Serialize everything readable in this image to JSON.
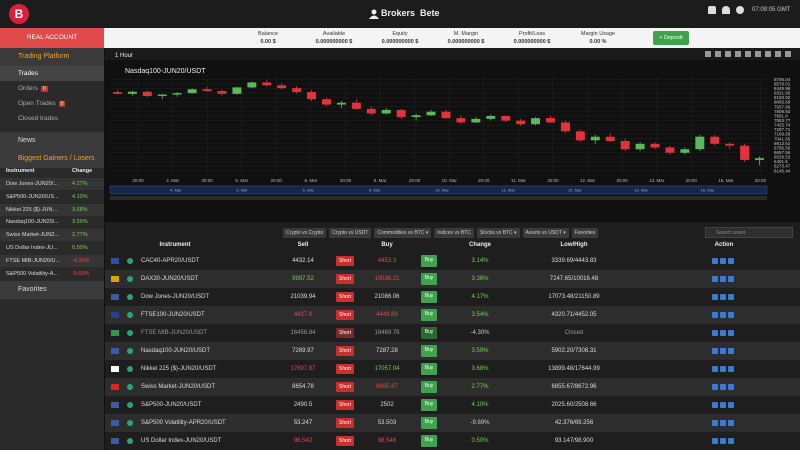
{
  "header": {
    "title": "Brokers  Bete",
    "time": "07:09:05 GMT"
  },
  "account": {
    "button": "REAL ACCOUNT",
    "stats": [
      {
        "label": "Balance",
        "value": "0.00 $"
      },
      {
        "label": "Available",
        "value": "0.000000000 $"
      },
      {
        "label": "Equity",
        "value": "0.000000000 $"
      },
      {
        "label": "M. Margin",
        "value": "0.000000000 $"
      },
      {
        "label": "Profit/Loss",
        "value": "0.000000000 $"
      },
      {
        "label": "Margin Usage",
        "value": "0.00 %"
      }
    ],
    "deposit": "+ Deposit"
  },
  "sidebar": {
    "platform": "Trading Platform",
    "menu": [
      {
        "label": "Trades"
      },
      {
        "label": "Orders",
        "badge": "0"
      },
      {
        "label": "Open Trades",
        "badge": "0"
      },
      {
        "label": "Closed trades"
      }
    ],
    "news": "News",
    "gainers_title": "Biggest Gainers / Losers",
    "gainers_header": [
      "Instrument",
      "Change"
    ],
    "gainers": [
      [
        "Dow Jones-JUN20/...",
        "4.17%"
      ],
      [
        "S&P500-JUN20/US...",
        "4.10%"
      ],
      [
        "Nikkei 225 ($)-JUN...",
        "3.68%"
      ],
      [
        "Nasdaq100-JUN20/...",
        "3.59%"
      ],
      [
        "Swiss Market-JUN2...",
        "2.77%"
      ],
      [
        "US Dollar Index-JU...",
        "0.50%"
      ],
      [
        "FTSE MIB-JUN20/U...",
        "-4.30%"
      ],
      [
        "S&P500 Volatility-A...",
        "-9.69%"
      ]
    ],
    "favorites": "Favorites"
  },
  "chart_data": {
    "type": "candlestick",
    "interval": "1 Hour",
    "title": "Nasdaq100-JUN20/USDT",
    "up_color": "#5cb85c",
    "down_color": "#e0333c",
    "open": [
      8350,
      8300,
      8360,
      8240,
      8280,
      8320,
      8430,
      8380,
      8300,
      8480,
      8620,
      8540,
      8460,
      8350,
      8150,
      8000,
      8050,
      7880,
      7750,
      7850,
      7650,
      7700,
      7800,
      7620,
      7500,
      7600,
      7680,
      7550,
      7450,
      7620,
      7500,
      7250,
      7000,
      7100,
      6980,
      6750,
      6900,
      6800,
      6650,
      6750,
      7100,
      6900,
      6850,
      6450
    ],
    "high": [
      8420,
      8380,
      8400,
      8300,
      8350,
      8450,
      8500,
      8420,
      8500,
      8650,
      8700,
      8600,
      8520,
      8400,
      8200,
      8100,
      8150,
      7950,
      7900,
      7880,
      7750,
      7850,
      7850,
      7700,
      7650,
      7720,
      7700,
      7600,
      7650,
      7680,
      7550,
      7300,
      7150,
      7200,
      7050,
      6950,
      6950,
      6850,
      6800,
      7150,
      7150,
      6950,
      6900,
      6550
    ],
    "low": [
      8280,
      8250,
      8200,
      8150,
      8220,
      8300,
      8350,
      8250,
      8280,
      8460,
      8500,
      8420,
      8300,
      8100,
      7950,
      7900,
      7850,
      7700,
      7720,
      7600,
      7550,
      7680,
      7600,
      7450,
      7480,
      7550,
      7500,
      7400,
      7420,
      7480,
      7200,
      6950,
      6900,
      6950,
      6700,
      6700,
      6750,
      6600,
      6600,
      6700,
      6850,
      6750,
      6400,
      6300
    ],
    "close": [
      8300,
      8360,
      8240,
      8280,
      8320,
      8430,
      8380,
      8300,
      8480,
      8620,
      8540,
      8460,
      8350,
      8150,
      8000,
      8050,
      7880,
      7750,
      7850,
      7650,
      7700,
      7800,
      7620,
      7500,
      7600,
      7680,
      7550,
      7450,
      7620,
      7500,
      7250,
      7000,
      7100,
      6980,
      6750,
      6900,
      6800,
      6650,
      6750,
      7100,
      6900,
      6850,
      6450,
      6500
    ],
    "ylim": [
      6000,
      8800
    ],
    "yticks": [
      6145.44,
      6273.47,
      6401.5,
      6529.53,
      6657.56,
      6785.59,
      6913.62,
      7041.65,
      7169.68,
      7297.71,
      7425.74,
      7553.77,
      7681.8,
      7809.83,
      7937.86,
      8065.89,
      8193.92,
      8321.95,
      8449.98,
      8578.01,
      8706.04
    ],
    "xtick_labels": [
      "20:00",
      "4. Mar",
      "20:00",
      "5. Mar",
      "20:00",
      "6. Mar",
      "20:00",
      "9. Mar",
      "20:00",
      "10. Mar",
      "20:00",
      "11. Mar",
      "20:00",
      "12. Mar",
      "20:00",
      "13. Mar",
      "20:00",
      "16. Mar",
      "20:00"
    ],
    "navigator_labels": [
      "4. Mar",
      "5. Mar",
      "6. Mar",
      "9. Mar",
      "10. Mar",
      "11. Mar",
      "12. Mar",
      "13. Mar",
      "16. Mar"
    ],
    "grid": true
  },
  "filters": [
    "Crypto vs Crypto",
    "Crypto vs USDT",
    "Commodities vs BTC ▾",
    "Indices vs BTC",
    "Stocks vs BTC ▾",
    "Assets vs USDT ▾",
    "Favorites"
  ],
  "search": "Search asset",
  "table": {
    "columns": [
      "Instrument",
      "Sell",
      "Buy",
      "Change",
      "Low/High",
      "Action"
    ],
    "short": "Short",
    "buy": "Buy",
    "rows": [
      {
        "flag": "#2a50a8",
        "name": "CAC40-APR20/USDT",
        "sell": "4432.14",
        "buy": "4453.3",
        "buy_color": "#e8474b",
        "change": "3.14%",
        "range": "3339.69/4443.83"
      },
      {
        "flag": "#d9a400",
        "name": "DAX30-JUN20/USDT",
        "sell": "9997.52",
        "sell_color": "#7ccf5a",
        "buy": "10036.21",
        "buy_color": "#e8474b",
        "change": "3.36%",
        "range": "7247.65/10016.48"
      },
      {
        "flag": "#3c5aa8",
        "name": "Dow Jones-JUN20/USDT",
        "sell": "21039.94",
        "buy": "21086.06",
        "change": "4.17%",
        "range": "17073.48/21150.89"
      },
      {
        "flag": "#2b3f8f",
        "name": "FTSE100-JUN20/USDT",
        "sell": "4437.8",
        "sell_color": "#e8474b",
        "buy": "4449.89",
        "buy_color": "#e8474b",
        "change": "3.54%",
        "range": "4320.71/4452.05"
      },
      {
        "flag": "#2e9a4a",
        "name": "FTSE MIB-JUN20/USDT",
        "sell": "16456.84",
        "buy": "16469.78",
        "change": "-4.30%",
        "range": "Closed",
        "closed": true
      },
      {
        "flag": "#3c5aa8",
        "name": "Nasdaq100-JUN20/USDT",
        "sell": "7269.97",
        "buy": "7287.28",
        "change": "3.59%",
        "range": "5902.20/7308.31"
      },
      {
        "flag": "#ffffff",
        "name": "Nikkei 225 ($)-JUN20/USDT",
        "sell": "17697.97",
        "sell_color": "#e8474b",
        "buy": "17057.04",
        "buy_color": "#7ccf5a",
        "change": "3.68%",
        "range": "13899.48/17644.99"
      },
      {
        "flag": "#d52b1e",
        "name": "Swiss Market-JUN20/USDT",
        "sell": "8654.78",
        "buy": "8685.87",
        "buy_color": "#e8474b",
        "change": "2.77%",
        "range": "6855.67/8672.96"
      },
      {
        "flag": "#3c5aa8",
        "name": "S&P500-JUN20/USDT",
        "sell": "2490.5",
        "buy": "2502",
        "change": "4.10%",
        "range": "2025.60/2508.66"
      },
      {
        "flag": "#3c5aa8",
        "name": "S&P500 Volatility-APR20/USDT",
        "sell": "53.247",
        "buy": "53.503",
        "change": "-9.69%",
        "range": "42.376/69.256"
      },
      {
        "flag": "#3c5aa8",
        "name": "US Dollar Index-JUN20/USDT",
        "sell": "98.542",
        "sell_color": "#e8474b",
        "buy": "98.546",
        "buy_color": "#e8474b",
        "change": "0.50%",
        "range": "93.147/98.900"
      }
    ]
  }
}
